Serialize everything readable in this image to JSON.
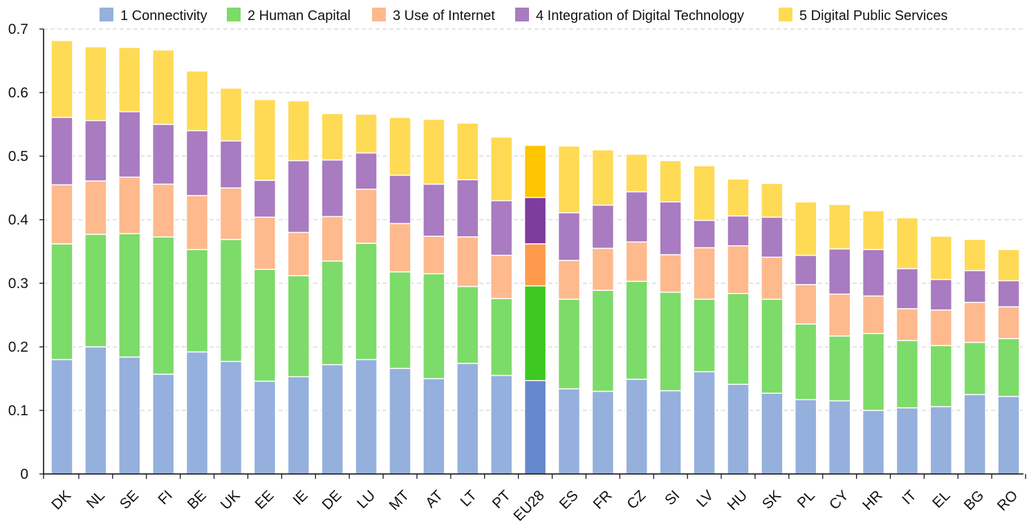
{
  "chart_data": {
    "type": "bar",
    "stacked": true,
    "ylim": [
      0,
      0.7
    ],
    "yticks": [
      "0",
      "0.1",
      "0.2",
      "0.3",
      "0.4",
      "0.5",
      "0.6",
      "0.7"
    ],
    "grid": "y-dashed",
    "legend_position": "top",
    "highlight_category": "EU28",
    "categories": [
      "DK",
      "NL",
      "SE",
      "FI",
      "BE",
      "UK",
      "EE",
      "IE",
      "DE",
      "LU",
      "MT",
      "AT",
      "LT",
      "PT",
      "EU28",
      "ES",
      "FR",
      "CZ",
      "SI",
      "LV",
      "HU",
      "SK",
      "PL",
      "CY",
      "HR",
      "IT",
      "EL",
      "BG",
      "RO"
    ],
    "series": [
      {
        "name": "1 Connectivity",
        "color": "#95b0dc",
        "highlight_color": "#6688cc",
        "values": [
          0.18,
          0.2,
          0.184,
          0.157,
          0.192,
          0.177,
          0.146,
          0.153,
          0.172,
          0.18,
          0.166,
          0.15,
          0.174,
          0.155,
          0.147,
          0.134,
          0.13,
          0.149,
          0.131,
          0.161,
          0.141,
          0.127,
          0.117,
          0.115,
          0.1,
          0.104,
          0.106,
          0.125,
          0.122
        ]
      },
      {
        "name": "2 Human Capital",
        "color": "#7ddb69",
        "highlight_color": "#3dc922",
        "values": [
          0.182,
          0.177,
          0.194,
          0.216,
          0.161,
          0.192,
          0.176,
          0.159,
          0.163,
          0.183,
          0.152,
          0.165,
          0.121,
          0.121,
          0.149,
          0.141,
          0.159,
          0.154,
          0.155,
          0.114,
          0.143,
          0.148,
          0.119,
          0.102,
          0.121,
          0.106,
          0.096,
          0.082,
          0.091
        ]
      },
      {
        "name": "3 Use of Internet",
        "color": "#feb98d",
        "highlight_color": "#ff9a4d",
        "values": [
          0.093,
          0.084,
          0.089,
          0.083,
          0.085,
          0.081,
          0.082,
          0.068,
          0.07,
          0.085,
          0.076,
          0.059,
          0.078,
          0.068,
          0.066,
          0.061,
          0.066,
          0.062,
          0.059,
          0.081,
          0.075,
          0.066,
          0.062,
          0.066,
          0.059,
          0.05,
          0.056,
          0.063,
          0.05
        ]
      },
      {
        "name": "4 Integration of Digital Technology",
        "color": "#a97bc0",
        "highlight_color": "#7d3c9e",
        "values": [
          0.106,
          0.095,
          0.103,
          0.094,
          0.102,
          0.074,
          0.058,
          0.113,
          0.089,
          0.057,
          0.076,
          0.082,
          0.09,
          0.086,
          0.073,
          0.075,
          0.068,
          0.079,
          0.083,
          0.043,
          0.047,
          0.063,
          0.046,
          0.071,
          0.073,
          0.063,
          0.048,
          0.05,
          0.041
        ]
      },
      {
        "name": "5 Digital Public Services",
        "color": "#ffda55",
        "highlight_color": "#ffc500",
        "values": [
          0.121,
          0.116,
          0.101,
          0.117,
          0.094,
          0.083,
          0.127,
          0.094,
          0.073,
          0.061,
          0.091,
          0.102,
          0.089,
          0.1,
          0.082,
          0.105,
          0.087,
          0.059,
          0.065,
          0.086,
          0.058,
          0.053,
          0.084,
          0.07,
          0.061,
          0.08,
          0.068,
          0.049,
          0.049
        ]
      }
    ]
  }
}
